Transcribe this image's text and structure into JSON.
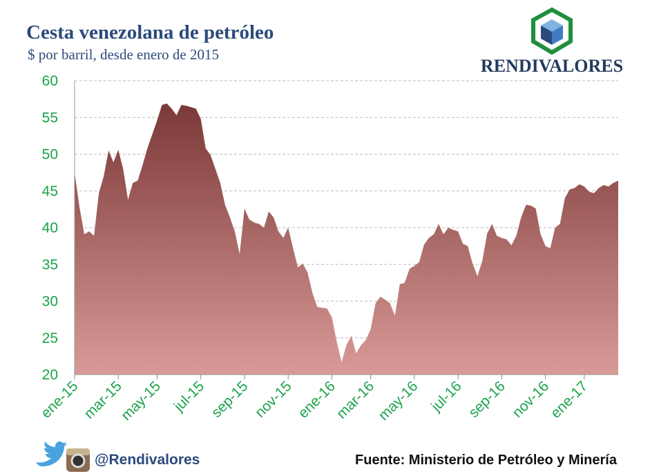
{
  "chart_data": {
    "type": "area",
    "title": "Cesta venezolana de petróleo",
    "subtitle": "$ por barril, desde enero de 2015",
    "brand": "RENDIVALORES",
    "handle": "@Rendivalores",
    "source": "Fuente: Ministerio de Petróleo y Minería",
    "categories": [
      "ene-15",
      null,
      null,
      null,
      null,
      null,
      null,
      null,
      null,
      "mar-15",
      null,
      null,
      null,
      null,
      null,
      null,
      null,
      "may-15",
      null,
      null,
      null,
      null,
      null,
      null,
      null,
      null,
      "jul-15",
      null,
      null,
      null,
      null,
      null,
      null,
      null,
      null,
      "sep-15",
      null,
      null,
      null,
      null,
      null,
      null,
      null,
      null,
      "nov-15",
      null,
      null,
      null,
      null,
      null,
      null,
      null,
      null,
      "ene-16",
      null,
      null,
      null,
      null,
      null,
      null,
      null,
      "mar-16",
      null,
      null,
      null,
      null,
      null,
      null,
      null,
      null,
      "may-16",
      null,
      null,
      null,
      null,
      null,
      null,
      null,
      null,
      "jul-16",
      null,
      null,
      null,
      null,
      null,
      null,
      null,
      null,
      "sep-16",
      null,
      null,
      null,
      null,
      null,
      null,
      null,
      null,
      "nov-16",
      null,
      null,
      null,
      null,
      null,
      null,
      null,
      "ene-17",
      null,
      null,
      null,
      null,
      null,
      null,
      null
    ],
    "values": [
      47.5,
      42.8,
      39.1,
      39.5,
      38.9,
      44.7,
      47.0,
      50.5,
      48.9,
      50.6,
      48.0,
      43.8,
      46.1,
      46.4,
      48.5,
      50.8,
      52.7,
      54.6,
      56.7,
      56.9,
      56.2,
      55.3,
      56.7,
      56.6,
      56.4,
      56.2,
      54.8,
      50.8,
      49.9,
      48.0,
      46.1,
      43.1,
      41.4,
      39.5,
      36.4,
      42.6,
      41.1,
      40.7,
      40.5,
      40.0,
      42.2,
      41.4,
      39.5,
      38.6,
      40.0,
      37.2,
      34.6,
      35.1,
      33.9,
      31.1,
      29.2,
      29.1,
      29.0,
      27.8,
      24.5,
      21.7,
      24.0,
      25.3,
      22.9,
      24.0,
      24.7,
      26.2,
      29.7,
      30.6,
      30.2,
      29.7,
      28.0,
      32.3,
      32.5,
      34.4,
      34.8,
      35.3,
      37.7,
      38.6,
      39.1,
      40.5,
      39.1,
      40.0,
      39.7,
      39.5,
      37.8,
      37.5,
      35.1,
      33.4,
      35.5,
      39.2,
      40.5,
      38.9,
      38.6,
      38.4,
      37.6,
      38.9,
      41.4,
      43.1,
      43.0,
      42.6,
      39.1,
      37.5,
      37.2,
      40.0,
      40.5,
      44.0,
      45.2,
      45.4,
      45.9,
      45.6,
      44.9,
      44.7,
      45.4,
      45.8,
      45.6,
      46.1,
      46.4
    ],
    "ylim": [
      20,
      60
    ],
    "yticks": [
      20,
      25,
      30,
      35,
      40,
      45,
      50,
      55,
      60
    ],
    "grid": true,
    "color_top": "#7a3836",
    "color_bottom": "#d99b98",
    "tick_color": "#1aa34a"
  }
}
